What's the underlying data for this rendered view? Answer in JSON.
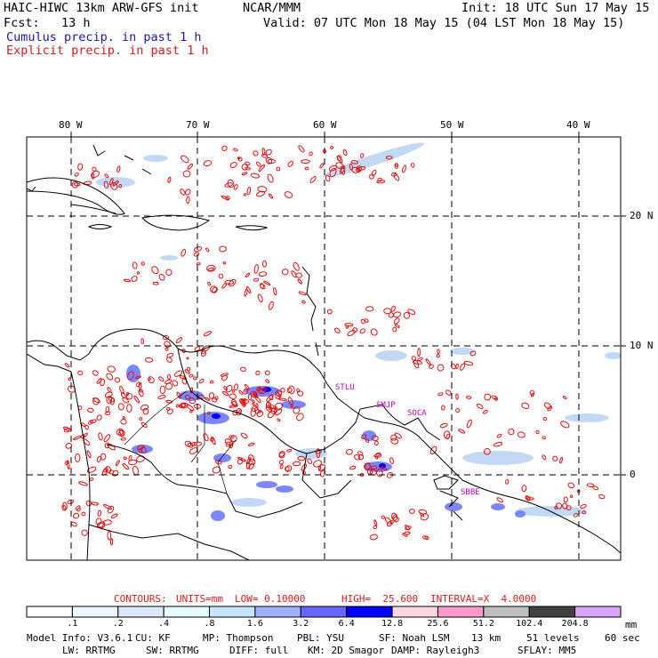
{
  "header": {
    "model": "HAIC-HIWC 13km ARW-GFS init",
    "org": "NCAR/MMM",
    "init": "Init: 18 UTC Sun 17 May 15",
    "fcst": "Fcst:   13 h",
    "valid": "Valid: 07 UTC Mon 18 May 15 (04 LST Mon 18 May 15)",
    "cumulus": "Cumulus precip. in past 1 h",
    "explicit": "Explicit precip. in past 1 h"
  },
  "map": {
    "lon_labels": [
      "80 W",
      "70 W",
      "60 W",
      "50 W",
      "40 W"
    ],
    "lat_labels": [
      "20 N",
      "10 N",
      "0"
    ],
    "stations": [
      "STLU",
      "SMJP",
      "SOCA",
      "SBBE"
    ]
  },
  "contours_line": {
    "label": "CONTOURS:",
    "units": "UNITS=mm",
    "low": "LOW= 0.10000",
    "high": "HIGH=  25.600",
    "interval": "INTERVAL=X  4.0000"
  },
  "colorbar": {
    "labels": [
      ".1",
      ".2",
      ".4",
      ".8",
      "1.6",
      "3.2",
      "6.4",
      "12.8",
      "25.6",
      "51.2",
      "102.4",
      "204.8"
    ],
    "unit": "mm",
    "colors": [
      "#ffffff",
      "#f0f6ff",
      "#dce9fb",
      "#e6fbfb",
      "#c8e6fb",
      "#9fb0ff",
      "#6666ff",
      "#0000ff",
      "#ffd6e0",
      "#ff99cc",
      "#bfbfbf",
      "#404040",
      "#d9a6ff"
    ]
  },
  "model_info": {
    "line1": {
      "a": "Model Info: V3.6.1",
      "b": "CU: KF",
      "c": "MP: Thompson",
      "d": "PBL: YSU",
      "e": "SF: Noah LSM",
      "f": "13 km",
      "g": "51 levels",
      "h": "60 sec"
    },
    "line2": {
      "a": "LW: RRTMG",
      "b": "SW: RRTMG",
      "c": "DIFF: full",
      "d": "KM: 2D Smagor",
      "e": "DAMP: Rayleigh3",
      "f": "SFLAY: MM5"
    }
  }
}
